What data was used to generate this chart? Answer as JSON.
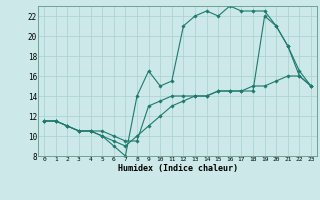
{
  "title": "",
  "xlabel": "Humidex (Indice chaleur)",
  "bg_color": "#cce8e8",
  "grid_color": "#a8d0d0",
  "line_color": "#1e7a6e",
  "xlim": [
    -0.5,
    23.5
  ],
  "ylim": [
    8,
    23
  ],
  "xticks": [
    0,
    1,
    2,
    3,
    4,
    5,
    6,
    7,
    8,
    9,
    10,
    11,
    12,
    13,
    14,
    15,
    16,
    17,
    18,
    19,
    20,
    21,
    22,
    23
  ],
  "yticks": [
    8,
    10,
    12,
    14,
    16,
    18,
    20,
    22
  ],
  "series1_x": [
    0,
    1,
    2,
    3,
    4,
    5,
    6,
    7,
    8,
    9,
    10,
    11,
    12,
    13,
    14,
    15,
    16,
    17,
    18,
    19,
    20,
    21,
    22,
    23
  ],
  "series1_y": [
    11.5,
    11.5,
    11,
    10.5,
    10.5,
    10,
    9,
    8,
    14,
    16.5,
    15,
    15.5,
    21,
    22,
    22.5,
    22,
    23,
    22.5,
    22.5,
    22.5,
    21,
    19,
    16,
    15
  ],
  "series2_x": [
    0,
    1,
    2,
    3,
    4,
    5,
    6,
    7,
    8,
    9,
    10,
    11,
    12,
    13,
    14,
    15,
    16,
    17,
    18,
    19,
    20,
    21,
    22,
    23
  ],
  "series2_y": [
    11.5,
    11.5,
    11,
    10.5,
    10.5,
    10,
    9.5,
    9,
    10,
    11,
    12,
    13,
    13.5,
    14,
    14,
    14.5,
    14.5,
    14.5,
    15,
    15,
    15.5,
    16,
    16,
    15
  ],
  "series3_x": [
    0,
    1,
    2,
    3,
    4,
    5,
    6,
    7,
    8,
    9,
    10,
    11,
    12,
    13,
    14,
    15,
    16,
    17,
    18,
    19,
    20,
    21,
    22,
    23
  ],
  "series3_y": [
    11.5,
    11.5,
    11,
    10.5,
    10.5,
    10.5,
    10,
    9.5,
    9.5,
    13,
    13.5,
    14,
    14,
    14,
    14,
    14.5,
    14.5,
    14.5,
    14.5,
    22,
    21,
    19,
    16.5,
    15
  ]
}
